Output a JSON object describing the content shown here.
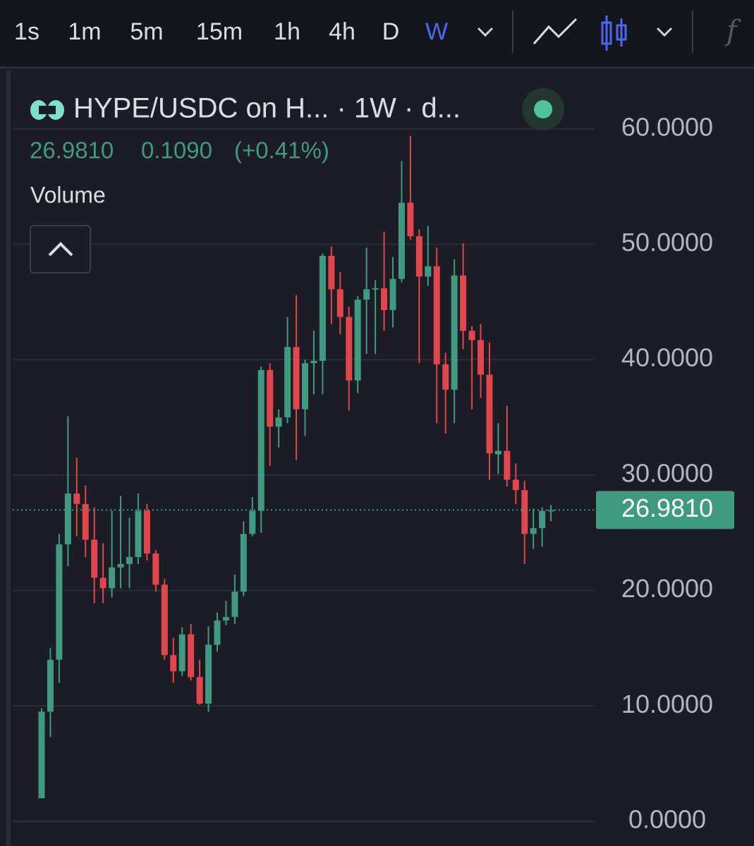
{
  "toolbar": {
    "intervals": [
      "1s",
      "1m",
      "5m",
      "15m",
      "1h",
      "4h",
      "D",
      "W"
    ],
    "active": 7
  },
  "header": {
    "symbol": "HYPE/USDC on H... · 1W · d...",
    "change": "0.1090",
    "change_pct": "(+0.41%)",
    "indicator": "Volume"
  },
  "chart_data": {
    "type": "candlestick",
    "up_color": "#3f9a7f",
    "down_color": "#e0464c",
    "grid": true,
    "ylim": [
      -2.14,
      65.06
    ],
    "yticks": [
      {
        "value": 0,
        "label": "0.0000"
      },
      {
        "value": 10,
        "label": "10.0000"
      },
      {
        "value": 20,
        "label": "20.0000"
      },
      {
        "value": 30,
        "label": "30.0000"
      },
      {
        "value": 40,
        "label": "40.0000"
      },
      {
        "value": 50,
        "label": "50.0000"
      },
      {
        "value": 60,
        "label": "60.0000"
      }
    ],
    "last_price": {
      "value": 26.981,
      "label": "26.9810"
    },
    "open": [
      2.0,
      9.5,
      14.0,
      24.0,
      28.4,
      27.5,
      24.4,
      21.1,
      20.2,
      22.0,
      22.3,
      22.9,
      26.9,
      23.2,
      20.5,
      14.4,
      13.0,
      16.2,
      12.5,
      10.2,
      15.3,
      17.4,
      17.7,
      19.9,
      24.9,
      26.9,
      39.1,
      34.2,
      35.0,
      41.1,
      35.7,
      39.7,
      39.9,
      49.0,
      46.1,
      43.7,
      38.2,
      45.2,
      46.1,
      46.2,
      44.3,
      47.0,
      53.6,
      50.7,
      47.2,
      48.1,
      39.6,
      37.4,
      47.3,
      42.5,
      41.7,
      38.7,
      31.8,
      32.1,
      29.6,
      28.7,
      24.9,
      25.4,
      26.9
    ],
    "high": [
      9.8,
      15.0,
      24.9,
      35.1,
      31.5,
      29.1,
      27.2,
      24.1,
      26.9,
      28.2,
      26.3,
      28.4,
      27.5,
      23.5,
      21.0,
      15.9,
      16.8,
      17.1,
      14.0,
      16.9,
      18.1,
      19.1,
      21.4,
      26.0,
      28.1,
      39.4,
      39.7,
      35.7,
      43.7,
      45.6,
      40.0,
      42.5,
      49.2,
      49.8,
      47.6,
      44.6,
      45.5,
      49.7,
      46.9,
      51.1,
      48.9,
      57.2,
      59.4,
      51.3,
      51.6,
      49.7,
      40.6,
      48.7,
      50.1,
      42.9,
      43.1,
      41.5,
      34.5,
      36.0,
      31.0,
      29.5,
      27.1,
      27.2,
      27.4
    ],
    "low": [
      2.0,
      7.3,
      12.0,
      22.1,
      24.7,
      22.9,
      18.9,
      18.9,
      19.4,
      20.2,
      20.2,
      22.3,
      22.6,
      19.9,
      14.0,
      12.0,
      12.6,
      12.2,
      10.1,
      9.5,
      14.7,
      17.0,
      17.1,
      19.5,
      24.7,
      25.0,
      30.8,
      32.4,
      34.5,
      31.3,
      33.4,
      37.0,
      37.0,
      43.1,
      42.2,
      35.6,
      37.1,
      40.5,
      40.5,
      42.5,
      42.8,
      46.7,
      50.4,
      39.7,
      46.4,
      34.5,
      33.6,
      34.5,
      40.9,
      35.7,
      36.7,
      29.6,
      30.1,
      29.0,
      27.5,
      22.3,
      23.6,
      23.8,
      26.0
    ],
    "close": [
      9.5,
      14.0,
      24.0,
      28.4,
      27.5,
      24.4,
      21.1,
      20.2,
      22.0,
      22.3,
      22.9,
      26.9,
      23.2,
      20.5,
      14.4,
      13.0,
      16.2,
      12.5,
      10.2,
      15.3,
      17.4,
      17.7,
      19.9,
      24.9,
      26.9,
      39.1,
      34.2,
      35.0,
      41.1,
      35.7,
      39.7,
      39.9,
      49.0,
      46.1,
      43.7,
      38.2,
      45.2,
      46.1,
      46.2,
      44.3,
      47.0,
      53.6,
      50.7,
      47.2,
      48.1,
      39.6,
      37.4,
      47.3,
      42.5,
      41.7,
      38.7,
      31.9,
      32.1,
      29.6,
      28.7,
      24.9,
      25.4,
      26.9,
      26.981
    ]
  }
}
